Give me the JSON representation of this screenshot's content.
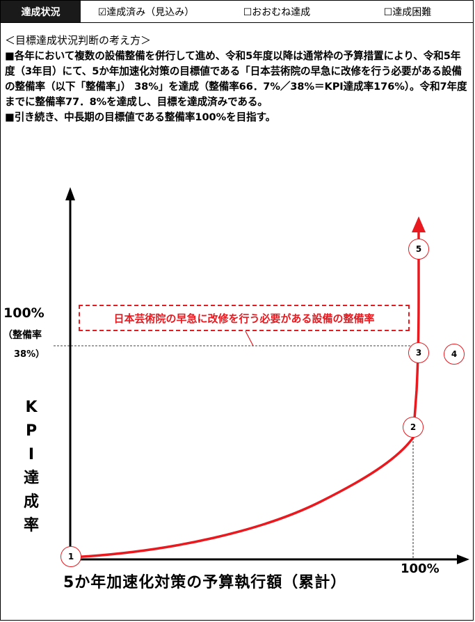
{
  "status_bar": {
    "label": "達成状況",
    "options": [
      {
        "text": "☑達成済み（見込み）"
      },
      {
        "text": "☐おおむね達成"
      },
      {
        "text": "☐達成困難"
      }
    ]
  },
  "heading": "＜目標達成状況判断の考え方＞",
  "body_paragraphs": [
    "■各年において複数の設備整備を併行して進め、令和5年度以降は通常枠の予算措置により、令和5年度（3年目）にて、5か年加速化対策の目標値である「日本芸術院の早急に改修を行う必要がある設備の整備率（以下「整備率」） 38%」を達成（整備率66．7%／38%＝KPI達成率176%）。令和7年度までに整備率77．8%を達成し、目標を達成済みである。",
    "■引き続き、中長期の目標値である整備率100%を目指す。"
  ],
  "diagram": {
    "y_tick_main": "100%",
    "y_tick_sub1": "（整備率",
    "y_tick_sub2": "38%）",
    "y_axis_label": [
      "K",
      "P",
      "I",
      "達",
      "成",
      "率"
    ],
    "x_axis_label": "5か年加速化対策の予算執行額（累計）",
    "x_tick": "100%",
    "callout": "日本芸術院の早急に改修を行う必要がある設備の整備率",
    "markers": [
      "1",
      "2",
      "3",
      "4",
      "5"
    ],
    "colors": {
      "accent": "#e8191f",
      "axis": "#000000"
    }
  }
}
